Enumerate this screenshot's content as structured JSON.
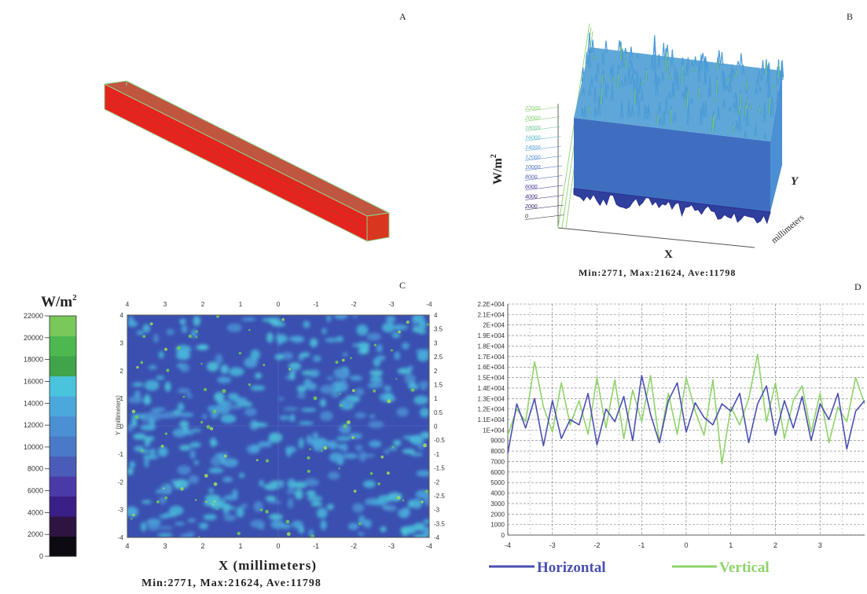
{
  "panels": {
    "a": {
      "letter": "A"
    },
    "b": {
      "letter": "B",
      "z_label_base": "W/m",
      "z_label_sup": "2",
      "x_label": "X",
      "y_label": "Y",
      "y_unit": "millimeters",
      "z_ticks": [
        "22000",
        "20000",
        "18000",
        "16000",
        "14000",
        "12000",
        "10000",
        "8000",
        "6000",
        "4000",
        "2000",
        "0"
      ],
      "caption": "Min:2771, Max:21624, Ave:11798"
    },
    "c": {
      "letter": "C",
      "x_label": "X (millimeters)",
      "y_label": "Y (millimeters)",
      "caption": "Min:2771, Max:21624, Ave:11798",
      "x_ticks": [
        "4",
        "3",
        "2",
        "1",
        "0",
        "-1",
        "-2",
        "-3",
        "-4"
      ],
      "y_ticks": [
        "4",
        "3.5",
        "3",
        "2.5",
        "2",
        "1.5",
        "1",
        "0.5",
        "0",
        "-0.5",
        "-1",
        "-1.5",
        "-2",
        "-2.5",
        "-3",
        "-3.5",
        "-4"
      ]
    },
    "d": {
      "letter": "D"
    }
  },
  "colorbar": {
    "title_base": "W/m",
    "title_sup": "2",
    "ticks": [
      "22000",
      "20000",
      "18000",
      "16000",
      "14000",
      "12000",
      "10000",
      "8000",
      "6000",
      "4000",
      "2000",
      "0"
    ],
    "colors": [
      "#0d0a12",
      "#2e1440",
      "#3a1f86",
      "#4a3aa8",
      "#4b5cb8",
      "#4a79c8",
      "#4b8fd4",
      "#4ba8dc",
      "#49c4dc",
      "#3fa44a",
      "#4db84f",
      "#79c85a"
    ]
  },
  "colors": {
    "horizontal": "#4a4fb0",
    "vertical": "#8ed36a",
    "bar_red": "#e8221e"
  },
  "chart_data": [
    {
      "type": "heatmap",
      "title": "C",
      "xlabel": "X (millimeters)",
      "ylabel": "Y (millimeters)",
      "xlim": [
        4,
        -4
      ],
      "ylim": [
        -4,
        4
      ],
      "zlim": [
        0,
        22000
      ],
      "summary": "Min:2771, Max:21624, Ave:11798"
    },
    {
      "type": "line",
      "title": "D",
      "xlim": [
        -4,
        4
      ],
      "ylim": [
        0,
        22000
      ],
      "x_ticks": [
        "-4",
        "-3",
        "-2",
        "-1",
        "0",
        "1",
        "2",
        "3"
      ],
      "y_ticks": [
        "2.2E+004",
        "2.1E+004",
        "2E+004",
        "1.9E+004",
        "1.8E+004",
        "1.7E+004",
        "1.6E+004",
        "1.5E+004",
        "1.4E+004",
        "1.3E+004",
        "1.2E+004",
        "1.1E+004",
        "1E+004",
        "9000",
        "8000",
        "7000",
        "6000",
        "5000",
        "4000",
        "3000",
        "2000",
        "1000",
        "0"
      ],
      "grid": true,
      "legend": "bottom",
      "series": [
        {
          "name": "Horizontal",
          "x": [
            -4,
            -3.8,
            -3.6,
            -3.4,
            -3.2,
            -3.0,
            -2.8,
            -2.6,
            -2.4,
            -2.2,
            -2.0,
            -1.8,
            -1.6,
            -1.4,
            -1.2,
            -1.0,
            -0.8,
            -0.6,
            -0.4,
            -0.2,
            0.0,
            0.2,
            0.4,
            0.6,
            0.8,
            1.0,
            1.2,
            1.4,
            1.6,
            1.8,
            2.0,
            2.2,
            2.4,
            2.6,
            2.8,
            3.0,
            3.2,
            3.4,
            3.6,
            3.8,
            4.0
          ],
          "y": [
            7800,
            12500,
            10200,
            13000,
            8500,
            12800,
            9200,
            11000,
            10500,
            13500,
            8600,
            12000,
            10800,
            13200,
            9000,
            15200,
            11500,
            8800,
            12800,
            14500,
            9800,
            12600,
            11200,
            10500,
            12500,
            11800,
            13500,
            8800,
            12500,
            14200,
            9500,
            12800,
            10200,
            13200,
            9000,
            12500,
            11000,
            13500,
            8200,
            11800,
            12800
          ]
        },
        {
          "name": "Vertical",
          "x": [
            -4,
            -3.8,
            -3.6,
            -3.4,
            -3.2,
            -3.0,
            -2.8,
            -2.6,
            -2.4,
            -2.2,
            -2.0,
            -1.8,
            -1.6,
            -1.4,
            -1.2,
            -1.0,
            -0.8,
            -0.6,
            -0.4,
            -0.2,
            0.0,
            0.2,
            0.4,
            0.6,
            0.8,
            1.0,
            1.2,
            1.4,
            1.6,
            1.8,
            2.0,
            2.2,
            2.4,
            2.6,
            2.8,
            3.0,
            3.2,
            3.4,
            3.6,
            3.8,
            4.0
          ],
          "y": [
            9500,
            12000,
            10800,
            16500,
            12200,
            9800,
            14500,
            10500,
            12800,
            9600,
            15000,
            10200,
            14800,
            9200,
            13800,
            10800,
            15200,
            8800,
            13500,
            9600,
            15000,
            11800,
            9500,
            14800,
            6800,
            12200,
            10500,
            13000,
            17200,
            10800,
            14500,
            9200,
            12800,
            14200,
            9800,
            13500,
            8800,
            12200,
            10800,
            15000,
            12500
          ]
        }
      ]
    }
  ]
}
